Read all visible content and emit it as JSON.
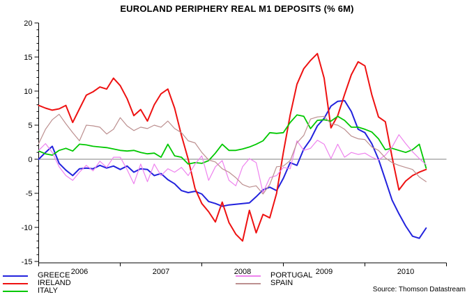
{
  "title": "EUROLAND PERIPHERY REAL M1 DEPOSITS (% 6M)",
  "source": "Source: Thomson Datastream",
  "colors": {
    "axis": "#000000",
    "zero_line": "#808080",
    "background": "#ffffff"
  },
  "chart_data": {
    "type": "line",
    "title": "EUROLAND PERIPHERY REAL M1 DEPOSITS (% 6M)",
    "x_start": "2006-01",
    "x_frequency": "monthly",
    "x_tick_labels": [
      "2006",
      "2007",
      "2008",
      "2009",
      "2010"
    ],
    "xlabel": "",
    "ylabel": "",
    "ylim": [
      -15,
      20
    ],
    "y_ticks": [
      20,
      15,
      10,
      5,
      0,
      -5,
      -10,
      -15
    ],
    "y_minor_tick_step": 1,
    "grid": false,
    "zero_line": true,
    "legend_position": "bottom-left-two-columns",
    "series": [
      {
        "name": "GREECE",
        "color": "#2222DD",
        "width": 2,
        "values": [
          0.0,
          1.0,
          1.9,
          -0.6,
          -1.6,
          -2.4,
          -1.4,
          -1.3,
          -1.4,
          -0.9,
          -1.3,
          -1.0,
          -1.5,
          -1.0,
          -1.9,
          -1.4,
          -1.5,
          -2.4,
          -2.1,
          -3.0,
          -3.6,
          -4.6,
          -4.9,
          -4.7,
          -5.1,
          -6.2,
          -6.5,
          -6.9,
          -6.7,
          -6.6,
          -6.5,
          -6.4,
          -5.5,
          -4.5,
          -4.1,
          -4.6,
          -2.8,
          -0.5,
          -0.9,
          1.5,
          2.9,
          4.9,
          6.0,
          7.8,
          8.5,
          8.6,
          7.0,
          4.4,
          3.9,
          2.3,
          0.0,
          -3.0,
          -6.0,
          -8.0,
          -9.8,
          -11.3,
          -11.6,
          -10.1
        ]
      },
      {
        "name": "IRELAND",
        "color": "#EE1111",
        "width": 2,
        "values": [
          7.9,
          7.5,
          7.2,
          7.4,
          7.9,
          5.4,
          7.4,
          9.4,
          9.9,
          10.6,
          10.3,
          11.9,
          10.8,
          8.9,
          6.4,
          7.3,
          5.6,
          8.0,
          9.6,
          10.3,
          7.5,
          3.5,
          0.0,
          -4.3,
          -6.5,
          -7.7,
          -9.2,
          -6.3,
          -9.3,
          -11.0,
          -12.0,
          -7.5,
          -10.8,
          -8.1,
          -8.6,
          -5.0,
          1.0,
          6.5,
          11.0,
          13.3,
          14.5,
          15.5,
          11.9,
          4.6,
          6.4,
          9.5,
          12.4,
          14.3,
          13.7,
          9.5,
          6.2,
          5.5,
          0.3,
          -4.5,
          -3.2,
          -2.4,
          -1.9,
          -1.5
        ]
      },
      {
        "name": "ITALY",
        "color": "#00C800",
        "width": 1.8,
        "values": [
          1.2,
          0.8,
          0.6,
          1.3,
          1.6,
          1.2,
          2.2,
          2.1,
          1.9,
          1.8,
          1.7,
          1.5,
          1.3,
          1.2,
          1.3,
          1.0,
          0.8,
          0.9,
          0.3,
          2.2,
          0.5,
          0.3,
          -0.7,
          -0.5,
          -0.6,
          -0.2,
          0.9,
          2.2,
          1.3,
          1.3,
          1.5,
          1.8,
          2.2,
          2.7,
          3.9,
          3.8,
          3.9,
          5.4,
          6.5,
          6.3,
          4.5,
          5.7,
          5.8,
          5.6,
          6.3,
          5.7,
          4.7,
          4.7,
          4.4,
          4.0,
          3.0,
          1.4,
          1.6,
          1.3,
          1.0,
          1.4,
          2.2,
          -1.3
        ]
      },
      {
        "name": "PORTUGAL",
        "color": "#EE82EE",
        "width": 1.2,
        "values": [
          1.3,
          2.3,
          1.0,
          -1.1,
          -2.4,
          -3.1,
          -1.9,
          -0.9,
          -1.7,
          -0.3,
          -1.2,
          0.3,
          0.3,
          -1.5,
          -3.6,
          -0.7,
          -3.3,
          -0.7,
          -2.4,
          -1.4,
          -1.9,
          -1.2,
          -2.4,
          -0.7,
          0.5,
          -3.1,
          -1.1,
          -0.2,
          -3.1,
          -3.9,
          -1.1,
          0.1,
          -0.5,
          -4.9,
          -2.7,
          -2.4,
          -1.2,
          -1.4,
          2.7,
          1.3,
          1.6,
          2.8,
          2.2,
          0.1,
          2.2,
          0.3,
          1.0,
          0.7,
          0.9,
          0.3,
          -0.1,
          0.6,
          1.8,
          3.6,
          2.3,
          1.1,
          0.1,
          -0.8
        ]
      },
      {
        "name": "SPAIN",
        "color": "#BC8F8F",
        "width": 1.2,
        "values": [
          2.3,
          4.4,
          5.8,
          6.6,
          5.2,
          3.9,
          2.7,
          5.0,
          4.9,
          4.7,
          3.7,
          4.4,
          6.1,
          4.9,
          4.2,
          4.7,
          4.5,
          5.0,
          4.7,
          5.6,
          4.5,
          3.9,
          2.7,
          2.4,
          1.0,
          -0.1,
          -0.4,
          -1.4,
          -1.9,
          -2.7,
          -3.7,
          -4.1,
          -3.9,
          -5.1,
          -3.7,
          -1.1,
          -1.0,
          -0.2,
          2.4,
          3.5,
          5.9,
          6.2,
          6.3,
          5.2,
          5.0,
          4.4,
          3.4,
          3.0,
          2.9,
          1.8,
          1.3,
          0.2,
          -0.5,
          -0.9,
          -1.2,
          -1.5,
          -2.6,
          -3.3
        ]
      }
    ]
  }
}
